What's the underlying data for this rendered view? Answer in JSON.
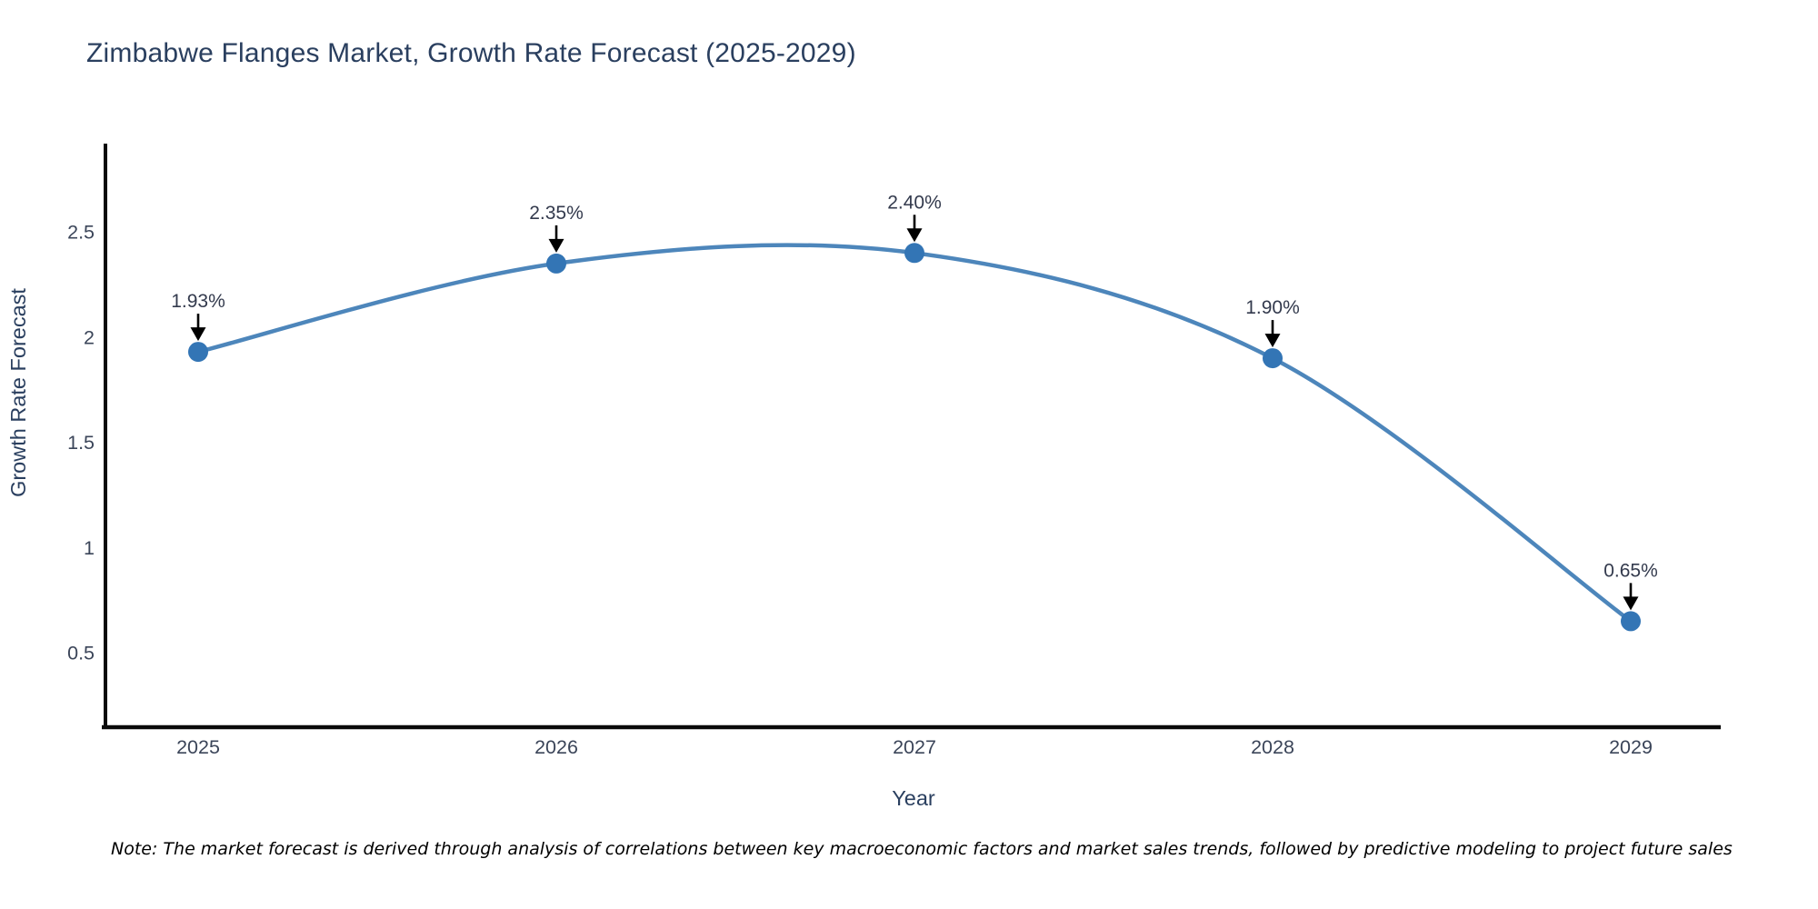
{
  "chart_data": {
    "type": "line",
    "title": "Zimbabwe Flanges Market, Growth Rate Forecast (2025-2029)",
    "x": [
      "2025",
      "2026",
      "2027",
      "2028",
      "2029"
    ],
    "series": [
      {
        "name": "Growth Rate Forecast",
        "values": [
          1.93,
          2.35,
          2.4,
          1.9,
          0.65
        ],
        "point_labels": [
          "1.93%",
          "2.35%",
          "2.40%",
          "1.90%",
          "0.65%"
        ]
      }
    ],
    "xlabel": "Year",
    "ylabel": "Growth Rate Forecast",
    "yticks": [
      0.5,
      1,
      1.5,
      2,
      2.5
    ],
    "ylim": [
      0.146,
      2.92
    ],
    "line_shape": "spline",
    "grid": false,
    "legend_position": "none",
    "colors": {
      "line": "#4d86bb",
      "marker": "#3375b5",
      "axis_line": "#0a0a0a",
      "annotation_arrow": "#000000",
      "text": "#2a3f5f",
      "background": "#ffffff"
    }
  },
  "note": {
    "text": "Note: The market forecast is derived through analysis of correlations between key macroeconomic factors and market sales trends, followed by predictive modeling to project future sales"
  }
}
